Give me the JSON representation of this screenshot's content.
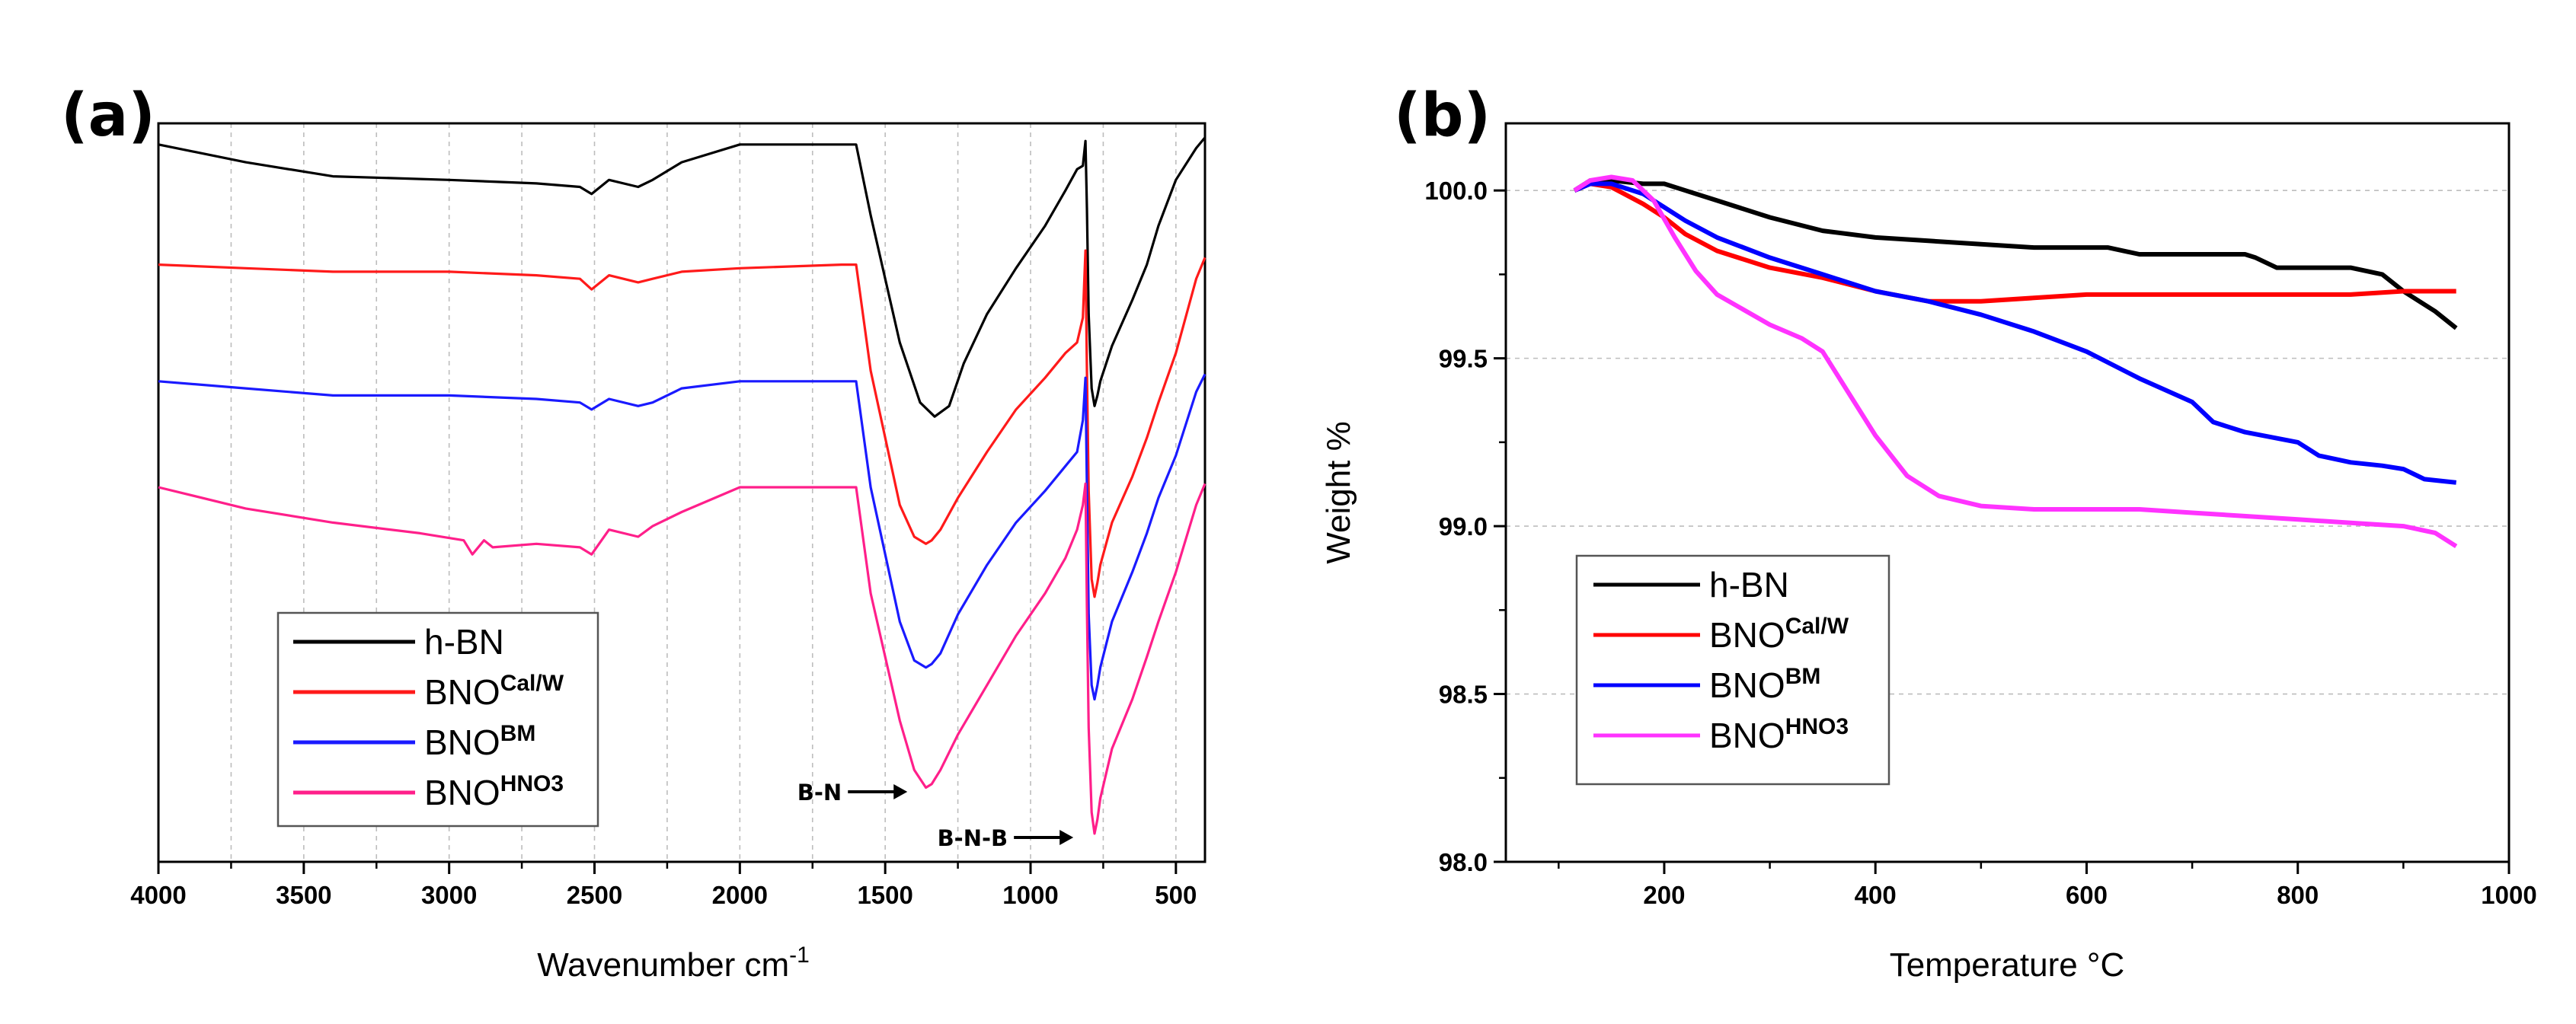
{
  "chart_data": [
    {
      "id": "a",
      "panel_label": "(a)",
      "type": "line",
      "xlabel": "Wavenumber cm",
      "xlabel_sup": "-1",
      "ylabel": "",
      "xlim": [
        4000,
        400
      ],
      "x_reversed": true,
      "yticks_shown": false,
      "grid": "vertical",
      "xticks": [
        "4000",
        "3500",
        "3000",
        "2500",
        "2000",
        "1500",
        "1000",
        "500"
      ],
      "legend": "bottom-left",
      "series": [
        {
          "name": "h-BN",
          "base": "h-BN",
          "sup": "",
          "color": "#000000",
          "offset": 4.55,
          "x": [
            4000,
            3700,
            3400,
            3000,
            2700,
            2550,
            2510,
            2450,
            2350,
            2300,
            2200,
            2000,
            1650,
            1600,
            1550,
            1450,
            1380,
            1330,
            1280,
            1230,
            1150,
            1050,
            950,
            880,
            840,
            820,
            811,
            806,
            800,
            790,
            780,
            770,
            760,
            720,
            650,
            600,
            560,
            500,
            430,
            400
          ],
          "y": [
            0.0,
            -0.25,
            -0.45,
            -0.5,
            -0.55,
            -0.6,
            -0.7,
            -0.5,
            -0.6,
            -0.5,
            -0.25,
            0.0,
            0.0,
            0.0,
            -1.0,
            -2.8,
            -3.65,
            -3.85,
            -3.7,
            -3.1,
            -2.4,
            -1.75,
            -1.15,
            -0.65,
            -0.35,
            -0.3,
            0.05,
            -0.9,
            -2.4,
            -3.45,
            -3.7,
            -3.55,
            -3.35,
            -2.85,
            -2.2,
            -1.7,
            -1.15,
            -0.5,
            -0.05,
            0.1
          ]
        },
        {
          "name": "BNOCal/W",
          "base": "BNO",
          "sup": "Cal/W",
          "color": "#ff1a1a",
          "offset": 2.85,
          "x": [
            4000,
            3700,
            3400,
            3000,
            2700,
            2550,
            2510,
            2450,
            2350,
            2300,
            2200,
            2000,
            1650,
            1600,
            1550,
            1450,
            1400,
            1360,
            1340,
            1310,
            1250,
            1150,
            1050,
            950,
            880,
            840,
            820,
            811,
            806,
            800,
            790,
            780,
            770,
            760,
            720,
            650,
            600,
            560,
            500,
            430,
            400
          ],
          "y": [
            0.0,
            -0.05,
            -0.1,
            -0.1,
            -0.15,
            -0.2,
            -0.35,
            -0.15,
            -0.25,
            -0.2,
            -0.1,
            -0.05,
            0.0,
            0.0,
            -1.5,
            -3.4,
            -3.85,
            -3.95,
            -3.9,
            -3.75,
            -3.3,
            -2.65,
            -2.05,
            -1.6,
            -1.25,
            -1.1,
            -0.75,
            0.2,
            -1.5,
            -3.2,
            -4.45,
            -4.7,
            -4.5,
            -4.25,
            -3.65,
            -3.0,
            -2.45,
            -1.95,
            -1.25,
            -0.2,
            0.1
          ]
        },
        {
          "name": "BNOBM",
          "base": "BNO",
          "sup": "BM",
          "color": "#1a1aff",
          "offset": 1.2,
          "x": [
            4000,
            3700,
            3400,
            3000,
            2700,
            2550,
            2510,
            2450,
            2350,
            2300,
            2200,
            2000,
            1650,
            1600,
            1550,
            1450,
            1400,
            1360,
            1340,
            1310,
            1250,
            1150,
            1050,
            950,
            880,
            840,
            820,
            811,
            806,
            800,
            790,
            780,
            770,
            760,
            720,
            650,
            600,
            560,
            500,
            430,
            400
          ],
          "y": [
            0.0,
            -0.1,
            -0.2,
            -0.2,
            -0.25,
            -0.3,
            -0.4,
            -0.25,
            -0.35,
            -0.3,
            -0.1,
            0.0,
            0.0,
            0.0,
            -1.5,
            -3.4,
            -3.95,
            -4.05,
            -4.0,
            -3.85,
            -3.3,
            -2.6,
            -2.0,
            -1.55,
            -1.2,
            -1.0,
            -0.55,
            0.05,
            -1.5,
            -3.3,
            -4.3,
            -4.5,
            -4.3,
            -4.05,
            -3.4,
            -2.7,
            -2.15,
            -1.65,
            -1.05,
            -0.15,
            0.1
          ]
        },
        {
          "name": "BNOHNO3",
          "base": "BNO",
          "sup": "HNO3",
          "color": "#ff1f8a",
          "offset": -0.3,
          "x": [
            4000,
            3700,
            3400,
            3100,
            2950,
            2920,
            2880,
            2850,
            2700,
            2550,
            2510,
            2450,
            2350,
            2300,
            2200,
            2000,
            1650,
            1600,
            1550,
            1450,
            1400,
            1360,
            1340,
            1310,
            1250,
            1150,
            1050,
            950,
            880,
            840,
            820,
            811,
            806,
            800,
            790,
            780,
            770,
            760,
            720,
            650,
            600,
            560,
            500,
            430,
            400
          ],
          "y": [
            0.0,
            -0.3,
            -0.5,
            -0.65,
            -0.75,
            -0.95,
            -0.75,
            -0.85,
            -0.8,
            -0.85,
            -0.95,
            -0.6,
            -0.7,
            -0.55,
            -0.35,
            0.0,
            0.0,
            0.0,
            -1.5,
            -3.3,
            -4.0,
            -4.25,
            -4.2,
            -4.0,
            -3.5,
            -2.8,
            -2.1,
            -1.5,
            -1.0,
            -0.6,
            -0.25,
            0.05,
            -1.7,
            -3.4,
            -4.6,
            -4.9,
            -4.7,
            -4.4,
            -3.7,
            -3.0,
            -2.4,
            -1.9,
            -1.2,
            -0.25,
            0.05
          ]
        }
      ],
      "annotations": [
        {
          "text": "B-N",
          "arrow": "right",
          "x": 1340,
          "y": 4.25
        },
        {
          "text": "B-N-B",
          "arrow": "right",
          "x": 790,
          "y": 5.0
        }
      ]
    },
    {
      "id": "b",
      "panel_label": "(b)",
      "type": "line",
      "xlabel": "Temperature °C",
      "ylabel": "Weight %",
      "xlim": [
        50,
        1000
      ],
      "ylim": [
        98.0,
        100.2
      ],
      "xticks": [
        "200",
        "400",
        "600",
        "800",
        "1000"
      ],
      "yticks": [
        "98.0",
        "98.5",
        "99.0",
        "99.5",
        "100.0"
      ],
      "grid": "horizontal dotted",
      "legend": "bottom-left",
      "series": [
        {
          "name": "h-BN",
          "base": "h-BN",
          "sup": "",
          "color": "#000000",
          "x": [
            115,
            130,
            150,
            180,
            200,
            220,
            250,
            300,
            350,
            400,
            450,
            500,
            550,
            600,
            620,
            650,
            700,
            750,
            760,
            780,
            800,
            850,
            880,
            900,
            930,
            950
          ],
          "y": [
            100.0,
            100.03,
            100.03,
            100.02,
            100.02,
            100.0,
            99.97,
            99.92,
            99.88,
            99.86,
            99.85,
            99.84,
            99.83,
            99.83,
            99.83,
            99.81,
            99.81,
            99.81,
            99.8,
            99.77,
            99.77,
            99.77,
            99.75,
            99.7,
            99.64,
            99.59
          ]
        },
        {
          "name": "BNOCal/W",
          "base": "BNO",
          "sup": "Cal/W",
          "color": "#ff0000",
          "x": [
            115,
            130,
            150,
            180,
            200,
            220,
            250,
            300,
            350,
            400,
            450,
            500,
            550,
            600,
            650,
            700,
            750,
            800,
            850,
            900,
            950
          ],
          "y": [
            100.0,
            100.02,
            100.01,
            99.96,
            99.92,
            99.87,
            99.82,
            99.77,
            99.74,
            99.7,
            99.67,
            99.67,
            99.68,
            99.69,
            99.69,
            99.69,
            99.69,
            99.69,
            99.69,
            99.7,
            99.7
          ]
        },
        {
          "name": "BNOBM",
          "base": "BNO",
          "sup": "BM",
          "color": "#0000ff",
          "x": [
            115,
            130,
            150,
            180,
            200,
            220,
            250,
            300,
            350,
            400,
            450,
            500,
            550,
            600,
            650,
            700,
            720,
            750,
            800,
            820,
            850,
            880,
            900,
            920,
            950
          ],
          "y": [
            100.0,
            100.02,
            100.02,
            99.99,
            99.95,
            99.91,
            99.86,
            99.8,
            99.75,
            99.7,
            99.67,
            99.63,
            99.58,
            99.52,
            99.44,
            99.37,
            99.31,
            99.28,
            99.25,
            99.21,
            99.19,
            99.18,
            99.17,
            99.14,
            99.13
          ]
        },
        {
          "name": "BNOHNO3",
          "base": "BNO",
          "sup": "HNO3",
          "color": "#ff33ff",
          "x": [
            115,
            130,
            150,
            170,
            190,
            210,
            230,
            250,
            300,
            330,
            350,
            370,
            400,
            430,
            460,
            500,
            550,
            600,
            650,
            700,
            800,
            850,
            900,
            930,
            950
          ],
          "y": [
            100.0,
            100.03,
            100.04,
            100.03,
            99.97,
            99.86,
            99.76,
            99.69,
            99.6,
            99.56,
            99.52,
            99.42,
            99.27,
            99.15,
            99.09,
            99.06,
            99.05,
            99.05,
            99.05,
            99.04,
            99.02,
            99.01,
            99.0,
            98.98,
            98.94
          ]
        }
      ]
    }
  ]
}
